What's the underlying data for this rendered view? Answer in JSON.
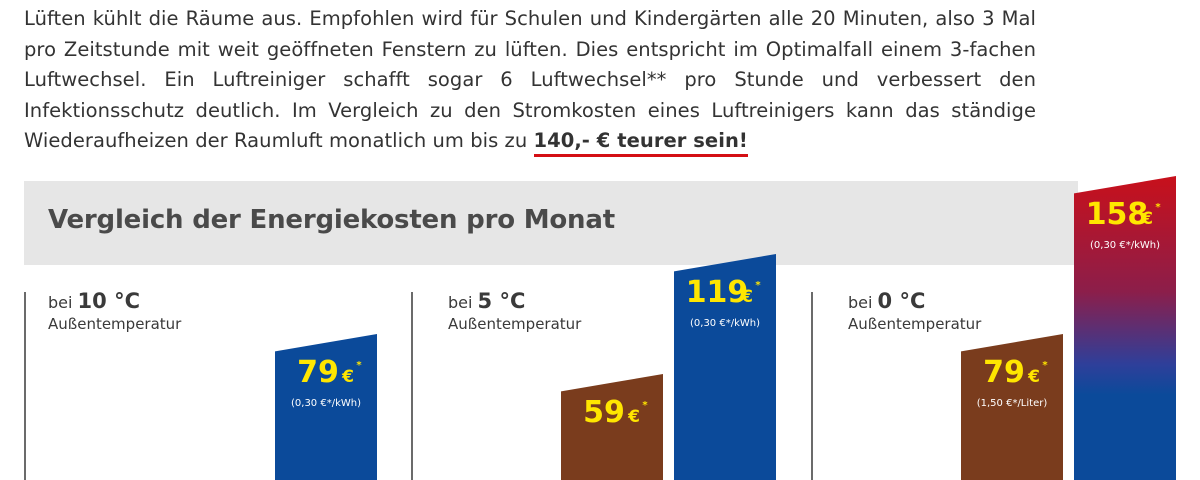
{
  "intro": {
    "text": "Lüften kühlt die Räume aus. Empfohlen wird für Schulen und Kindergärten alle 20 Minuten, also 3 Mal pro Zeitstunde mit weit geöffneten Fenstern zu lüften. Dies entspricht im Optimalfall einem 3-fachen Luftwechsel. Ein Luftreiniger schafft sogar 6 Luftwechsel** pro Stunde und verbessert den Infektionsschutz deutlich. Im Vergleich zu den Stromkosten eines Luftreinigers kann das ständige Wiederaufheizen der Raumluft monatlich um bis zu ",
    "highlight": "140,- € teurer sein!"
  },
  "colors": {
    "blue": "#0b4a9a",
    "brown": "#7a3c1d",
    "red": "#c8101b",
    "value_yellow": "#ffe600",
    "underline": "#d40f14"
  },
  "chart_data": {
    "type": "bar",
    "title": "Vergleich der Energiekosten pro Monat",
    "groups": [
      {
        "label_prefix": "bei",
        "temp": "10 °C",
        "sublabel": "Außentemperatur",
        "bars": [
          {
            "value": 79,
            "currency": "€",
            "note": "*",
            "unit": "(0,30 €*/kWh)",
            "color": "blue"
          }
        ]
      },
      {
        "label_prefix": "bei",
        "temp": "5 °C",
        "sublabel": "Außentemperatur",
        "bars": [
          {
            "value": 59,
            "currency": "€",
            "note": "*",
            "unit": "",
            "color": "brown"
          },
          {
            "value": 119,
            "currency": "€",
            "note": "*",
            "unit": "(0,30 €*/kWh)",
            "color": "blue"
          }
        ]
      },
      {
        "label_prefix": "bei",
        "temp": "0 °C",
        "sublabel": "Außentemperatur",
        "bars": [
          {
            "value": 79,
            "currency": "€",
            "note": "*",
            "unit": "(1,50 €*/Liter)",
            "color": "brown"
          },
          {
            "value": 158,
            "currency": "€",
            "note": "*",
            "unit": "(0,30 €*/kWh)",
            "color": "red-blue"
          }
        ]
      }
    ]
  }
}
